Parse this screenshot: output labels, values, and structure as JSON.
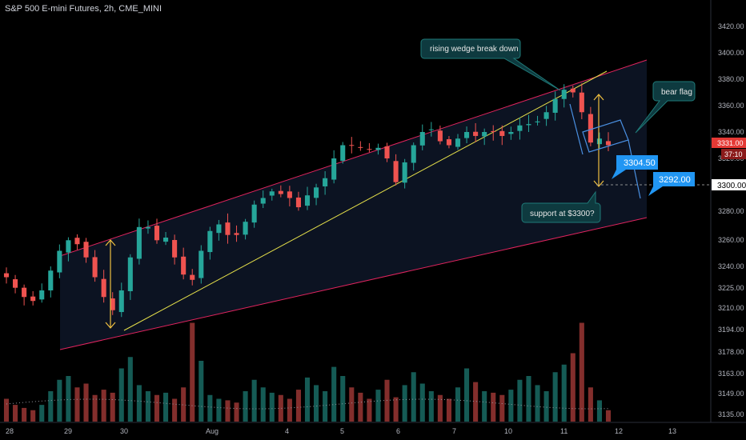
{
  "header": {
    "title": "S&P 500 E-mini Futures, 2h, CME_MINI"
  },
  "colors": {
    "up": "#26a69a",
    "down": "#ef5350",
    "channel": "#e0245e",
    "trend": "#e6e04a",
    "arrow": "#f0c040",
    "flag": "#4a90e2",
    "price_tag": "#e53935",
    "blue_tag": "#2196f3"
  },
  "annotations": {
    "wedge": "rising wedge break down",
    "flag": "bear flag",
    "support": "support at $3300?",
    "target1": "3304.50",
    "target2": "3292.00"
  },
  "price_scale": {
    "last_price": "3331.00",
    "countdown": "37:10",
    "level_3300": "3300.00"
  },
  "chart_data": {
    "type": "candlestick",
    "title": "S&P 500 E-mini Futures, 2h, CME_MINI",
    "y_ticks": [
      3420,
      3400,
      3380,
      3360,
      3340,
      3320,
      3300,
      3280,
      3260,
      3240,
      3225,
      3210,
      3194,
      3178,
      3163,
      3149,
      3135
    ],
    "y_tick_labels": [
      "3420.00",
      "3400.00",
      "3380.00",
      "3360.00",
      "3340.00",
      "3320.00",
      "3300.00",
      "3280.00",
      "3260.00",
      "3240.00",
      "3225.00",
      "3210.00",
      "3194.00",
      "3178.00",
      "3163.00",
      "3149.00",
      "3135.00"
    ],
    "x_labels": [
      "28",
      "29",
      "30",
      "Aug",
      "4",
      "5",
      "6",
      "7",
      "10",
      "11",
      "12",
      "13"
    ],
    "price_path": [
      3230,
      3222,
      3215,
      3212,
      3220,
      3235,
      3250,
      3258,
      3255,
      3245,
      3230,
      3215,
      3205,
      3220,
      3245,
      3268,
      3268,
      3258,
      3260,
      3245,
      3232,
      3228,
      3250,
      3265,
      3270,
      3262,
      3262,
      3272,
      3285,
      3290,
      3295,
      3293,
      3290,
      3283,
      3292,
      3298,
      3305,
      3320,
      3330,
      3330,
      3328,
      3327,
      3328,
      3320,
      3302,
      3317,
      3330,
      3340,
      3342,
      3333,
      3330,
      3335,
      3340,
      3337,
      3340,
      3340,
      3337,
      3340,
      3345,
      3346,
      3348,
      3355,
      3365,
      3372,
      3370,
      3355,
      3332,
      3335,
      3330
    ],
    "volume": [
      30,
      22,
      18,
      15,
      22,
      40,
      55,
      60,
      45,
      50,
      35,
      42,
      38,
      70,
      85,
      48,
      40,
      35,
      38,
      30,
      45,
      130,
      80,
      35,
      30,
      28,
      25,
      40,
      55,
      45,
      38,
      35,
      30,
      42,
      58,
      48,
      40,
      72,
      60,
      45,
      38,
      30,
      42,
      55,
      32,
      48,
      65,
      50,
      40,
      35,
      30,
      45,
      70,
      52,
      40,
      38,
      35,
      42,
      55,
      60,
      48,
      40,
      65,
      75,
      90,
      130,
      45,
      28,
      15
    ],
    "series": [
      {
        "name": "S&P 500 E-mini Futures",
        "values": "price_path"
      }
    ]
  }
}
